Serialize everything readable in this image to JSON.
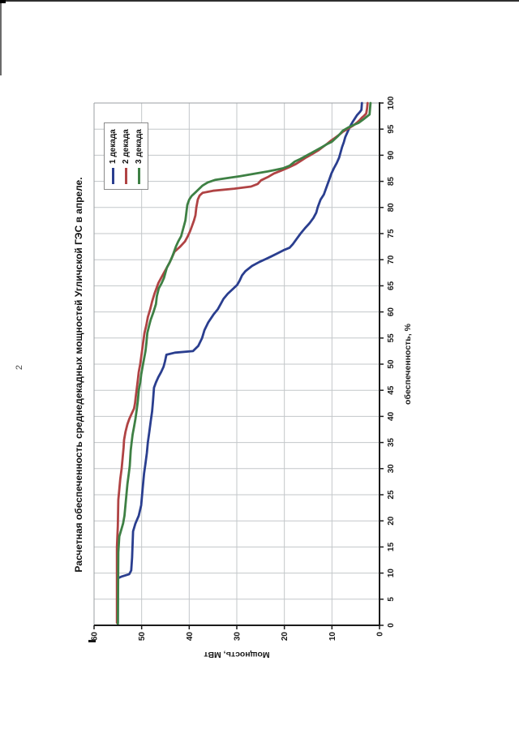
{
  "page": {
    "number": "2"
  },
  "chart_data": {
    "type": "line",
    "title": "Расчетная обеспеченность среднедекадных мощностей Угличской ГЭС в апреле.",
    "xlabel": "обеспеченность, %",
    "ylabel": "Мощность, МВт",
    "xlim": [
      0,
      100
    ],
    "ylim": [
      0,
      60
    ],
    "xticks": [
      0,
      5,
      10,
      15,
      20,
      25,
      30,
      35,
      40,
      45,
      50,
      55,
      60,
      65,
      70,
      75,
      80,
      85,
      90,
      95,
      100
    ],
    "yticks": [
      0,
      10,
      20,
      30,
      40,
      50,
      60
    ],
    "grid_x_step": 5,
    "grid_y_step": 10,
    "grid_on": true,
    "legend_position": "top-right-inside",
    "colors": {
      "axis": "#1b1b1b",
      "gridline": "#c3c7ca",
      "frame": "#9b9fa3"
    },
    "series": [
      {
        "name": "1 декада",
        "color": "#2A3E8F",
        "points": [
          [
            0.5,
            55
          ],
          [
            9,
            55
          ],
          [
            9.3,
            54.3
          ],
          [
            9.8,
            52.6
          ],
          [
            10.5,
            52.2
          ],
          [
            13,
            52
          ],
          [
            18,
            51.8
          ],
          [
            19.5,
            51.3
          ],
          [
            21,
            50.6
          ],
          [
            23,
            50.1
          ],
          [
            26,
            49.8
          ],
          [
            29,
            49.5
          ],
          [
            31,
            49.2
          ],
          [
            33,
            48.9
          ],
          [
            35,
            48.7
          ],
          [
            37,
            48.4
          ],
          [
            39,
            48.1
          ],
          [
            41,
            47.8
          ],
          [
            43,
            47.6
          ],
          [
            45.5,
            47.4
          ],
          [
            46.5,
            47
          ],
          [
            47.5,
            46.5
          ],
          [
            48.5,
            45.9
          ],
          [
            49.5,
            45.4
          ],
          [
            50.5,
            45.1
          ],
          [
            51.8,
            44.8
          ],
          [
            52.2,
            43
          ],
          [
            52.5,
            39.2
          ],
          [
            53.5,
            38.1
          ],
          [
            55,
            37.3
          ],
          [
            56.5,
            36.8
          ],
          [
            58,
            36
          ],
          [
            59.5,
            34.9
          ],
          [
            60.5,
            34
          ],
          [
            61.5,
            33.4
          ],
          [
            62.5,
            32.8
          ],
          [
            63.5,
            31.9
          ],
          [
            64.5,
            30.7
          ],
          [
            65.2,
            29.9
          ],
          [
            66,
            29.4
          ],
          [
            67,
            28.9
          ],
          [
            67.8,
            28.2
          ],
          [
            68.8,
            26.8
          ],
          [
            69.6,
            25.2
          ],
          [
            70.1,
            24
          ],
          [
            70.6,
            22.8
          ],
          [
            71.2,
            21.5
          ],
          [
            71.8,
            20.2
          ],
          [
            72.3,
            18.9
          ],
          [
            73,
            18.2
          ],
          [
            74,
            17.4
          ],
          [
            75,
            16.6
          ],
          [
            76,
            15.7
          ],
          [
            77,
            14.7
          ],
          [
            78,
            13.9
          ],
          [
            79,
            13.3
          ],
          [
            80,
            13
          ],
          [
            81.5,
            12.4
          ],
          [
            82.5,
            11.7
          ],
          [
            84,
            11.1
          ],
          [
            85.5,
            10.5
          ],
          [
            86.5,
            10.1
          ],
          [
            87.5,
            9.6
          ],
          [
            88.5,
            9
          ],
          [
            89.5,
            8.5
          ],
          [
            90.5,
            8.2
          ],
          [
            91.5,
            7.9
          ],
          [
            92.5,
            7.5
          ],
          [
            93.5,
            7.2
          ],
          [
            94.5,
            6.7
          ],
          [
            95.5,
            6.2
          ],
          [
            96.3,
            5.7
          ],
          [
            97,
            5.2
          ],
          [
            97.7,
            4.7
          ],
          [
            98.3,
            4.1
          ],
          [
            98.7,
            3.8
          ],
          [
            100,
            3.7
          ]
        ]
      },
      {
        "name": "2 декада",
        "color": "#B04344",
        "points": [
          [
            0.5,
            55.2
          ],
          [
            15,
            55.2
          ],
          [
            19,
            55
          ],
          [
            24,
            54.9
          ],
          [
            26,
            54.7
          ],
          [
            28,
            54.5
          ],
          [
            30,
            54.2
          ],
          [
            32,
            54
          ],
          [
            34,
            53.8
          ],
          [
            35.5,
            53.7
          ],
          [
            37,
            53.4
          ],
          [
            38.5,
            53
          ],
          [
            39.5,
            52.6
          ],
          [
            40.5,
            52.1
          ],
          [
            41.5,
            51.6
          ],
          [
            42.5,
            51.4
          ],
          [
            44,
            51.2
          ],
          [
            45.5,
            51
          ],
          [
            47,
            50.8
          ],
          [
            48.5,
            50.6
          ],
          [
            50,
            50.3
          ],
          [
            52,
            50
          ],
          [
            54,
            49.7
          ],
          [
            56,
            49.4
          ],
          [
            57.5,
            49
          ],
          [
            59,
            48.7
          ],
          [
            60.5,
            48.2
          ],
          [
            62,
            47.8
          ],
          [
            63.5,
            47.3
          ],
          [
            64.5,
            46.9
          ],
          [
            65.5,
            46.5
          ],
          [
            66.5,
            45.9
          ],
          [
            67.5,
            45.3
          ],
          [
            68.5,
            44.7
          ],
          [
            69.5,
            44.1
          ],
          [
            70.5,
            43.6
          ],
          [
            71.5,
            43.1
          ],
          [
            72.5,
            41.9
          ],
          [
            73.5,
            40.9
          ],
          [
            74.5,
            40.3
          ],
          [
            75.5,
            39.8
          ],
          [
            76.5,
            39.4
          ],
          [
            77.5,
            39
          ],
          [
            78.5,
            38.7
          ],
          [
            80,
            38.5
          ],
          [
            81.5,
            38.2
          ],
          [
            82.3,
            37.8
          ],
          [
            82.8,
            37.2
          ],
          [
            83.2,
            35
          ],
          [
            83.6,
            30.5
          ],
          [
            84,
            27
          ],
          [
            84.5,
            25.6
          ],
          [
            85.2,
            24.9
          ],
          [
            85.8,
            23.5
          ],
          [
            86.5,
            22.2
          ],
          [
            87,
            20.8
          ],
          [
            87.7,
            19
          ],
          [
            88.3,
            17.6
          ],
          [
            89,
            16.4
          ],
          [
            89.6,
            15.4
          ],
          [
            90.2,
            14.2
          ],
          [
            90.9,
            12.9
          ],
          [
            91.6,
            11.9
          ],
          [
            92.2,
            11
          ],
          [
            92.8,
            10.2
          ],
          [
            93.3,
            9.4
          ],
          [
            93.9,
            8.5
          ],
          [
            94.5,
            7.7
          ],
          [
            95.1,
            6.6
          ],
          [
            95.7,
            5.5
          ],
          [
            96.2,
            4.8
          ],
          [
            96.7,
            4.2
          ],
          [
            97.2,
            3.7
          ],
          [
            97.6,
            3.2
          ],
          [
            98,
            2.8
          ],
          [
            99,
            2.6
          ],
          [
            100,
            2.5
          ]
        ]
      },
      {
        "name": "3 декада",
        "color": "#3E8044",
        "points": [
          [
            0.2,
            55
          ],
          [
            14,
            54.9
          ],
          [
            17,
            54.7
          ],
          [
            19.5,
            53.9
          ],
          [
            21,
            53.6
          ],
          [
            23,
            53.4
          ],
          [
            25,
            53.2
          ],
          [
            27,
            53
          ],
          [
            29,
            52.7
          ],
          [
            30.5,
            52.5
          ],
          [
            32,
            52.4
          ],
          [
            33.5,
            52.3
          ],
          [
            35,
            52.1
          ],
          [
            36.5,
            51.9
          ],
          [
            38,
            51.6
          ],
          [
            39.5,
            51.3
          ],
          [
            41.5,
            51
          ],
          [
            43,
            50.8
          ],
          [
            45,
            50.6
          ],
          [
            46.5,
            50.3
          ],
          [
            48,
            50.1
          ],
          [
            49.5,
            49.8
          ],
          [
            51,
            49.5
          ],
          [
            52.5,
            49.2
          ],
          [
            54,
            49
          ],
          [
            56,
            48.8
          ],
          [
            57.5,
            48.4
          ],
          [
            58.5,
            48.1
          ],
          [
            60,
            47.5
          ],
          [
            61.5,
            47
          ],
          [
            63,
            46.8
          ],
          [
            64.5,
            46.4
          ],
          [
            65.5,
            45.8
          ],
          [
            66.5,
            45.3
          ],
          [
            67.5,
            45
          ],
          [
            68.5,
            44.7
          ],
          [
            69.5,
            44.1
          ],
          [
            70.5,
            43.6
          ],
          [
            71.5,
            43.2
          ],
          [
            72.5,
            42.8
          ],
          [
            73.5,
            42.3
          ],
          [
            74.5,
            41.7
          ],
          [
            75.5,
            41.4
          ],
          [
            76.5,
            41.1
          ],
          [
            77.5,
            40.8
          ],
          [
            79,
            40.6
          ],
          [
            80.5,
            40.4
          ],
          [
            81.5,
            40
          ],
          [
            82.2,
            39.5
          ],
          [
            82.8,
            38.8
          ],
          [
            83.5,
            38
          ],
          [
            84.2,
            37.2
          ],
          [
            84.8,
            36.1
          ],
          [
            85.3,
            34.5
          ],
          [
            85.7,
            31.5
          ],
          [
            86,
            29.3
          ],
          [
            86.5,
            26
          ],
          [
            86.9,
            23.5
          ],
          [
            87.2,
            21.8
          ],
          [
            87.5,
            20.3
          ],
          [
            88,
            18.9
          ],
          [
            88.8,
            17.8
          ],
          [
            89.3,
            16.6
          ],
          [
            89.9,
            15.4
          ],
          [
            90.4,
            14.4
          ],
          [
            90.9,
            13.4
          ],
          [
            91.5,
            12.2
          ],
          [
            92.1,
            11.1
          ],
          [
            92.6,
            10
          ],
          [
            93.1,
            9.4
          ],
          [
            93.7,
            8.7
          ],
          [
            94.2,
            8.2
          ],
          [
            94.7,
            7.7
          ],
          [
            95.3,
            6.6
          ],
          [
            95.8,
            5.4
          ],
          [
            96.2,
            4.4
          ],
          [
            96.8,
            3.5
          ],
          [
            97.3,
            2.8
          ],
          [
            97.8,
            2.1
          ],
          [
            100,
            1.9
          ]
        ]
      }
    ]
  }
}
